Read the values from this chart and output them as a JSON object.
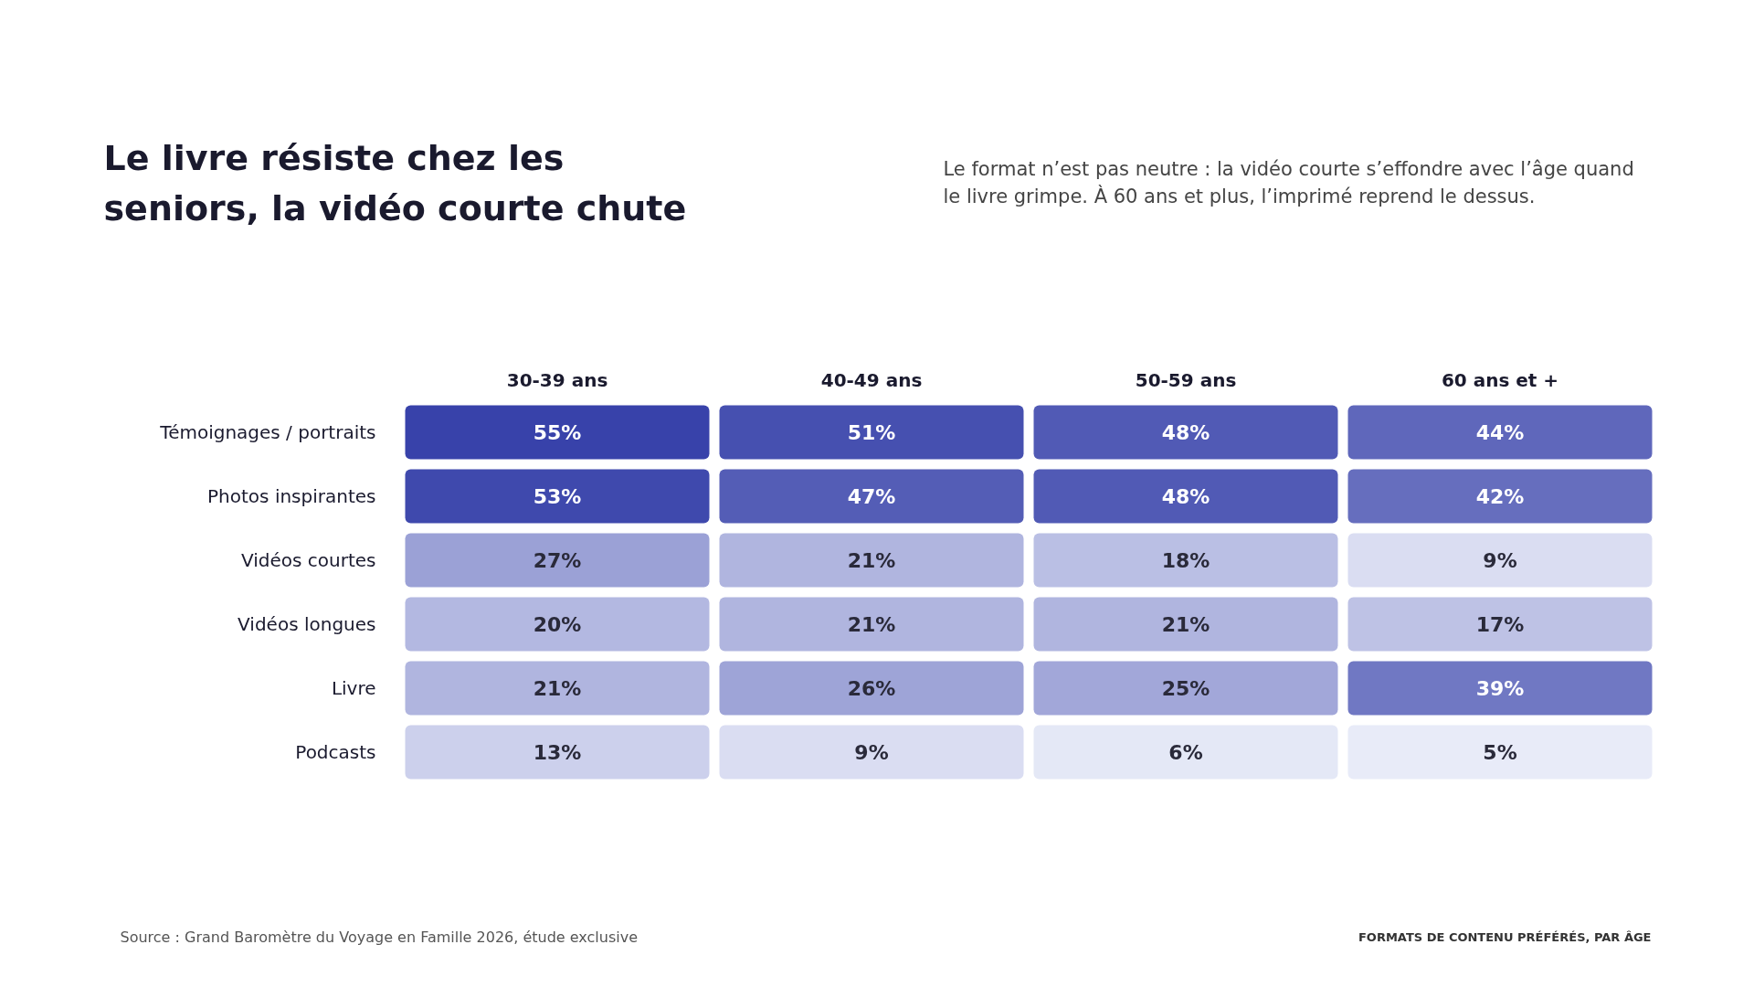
{
  "chart_data": {
    "type": "heatmap",
    "title": "Le livre résiste chez les seniors, la vidéo courte chute",
    "subtitle": "Le format n’est pas neutre : la vidéo courte s’effondre avec l’âge quand le livre grimpe. À 60 ans et plus, l’imprimé reprend le dessus.",
    "categories": [
      "30-39 ans",
      "40-49 ans",
      "50-59 ans",
      "60 ans et +"
    ],
    "y_categories": [
      "Témoignages / portraits",
      "Photos inspirantes",
      "Vidéos courtes",
      "Vidéos longues",
      "Livre",
      "Podcasts"
    ],
    "cells": [
      [
        55,
        51,
        48,
        44
      ],
      [
        53,
        47,
        48,
        42
      ],
      [
        27,
        21,
        18,
        9
      ],
      [
        20,
        21,
        21,
        17
      ],
      [
        21,
        26,
        25,
        39
      ],
      [
        13,
        9,
        6,
        5
      ]
    ],
    "cell_labels": [
      [
        "55%",
        "51%",
        "48%",
        "44%"
      ],
      [
        "53%",
        "47%",
        "48%",
        "42%"
      ],
      [
        "27%",
        "21%",
        "18%",
        "9%"
      ],
      [
        "20%",
        "21%",
        "21%",
        "17%"
      ],
      [
        "21%",
        "26%",
        "25%",
        "39%"
      ],
      [
        "13%",
        "9%",
        "6%",
        "5%"
      ]
    ],
    "annotations": [
      "Source : Grand Baromètre du Voyage en Famille 2026, étude exclusive",
      "FORMATS DE CONTENU PRÉFÉRÉS, PAR ÂGE"
    ]
  }
}
